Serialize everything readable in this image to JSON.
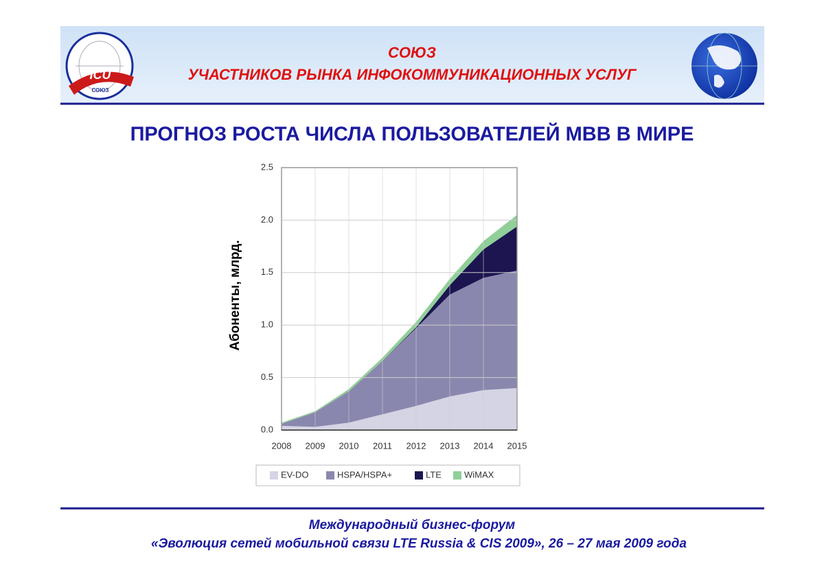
{
  "header": {
    "line1": "СОЮЗ",
    "line2": "УЧАСТНИКОВ РЫНКА ИНФОКОММУНИКАЦИОННЫХ УСЛУГ",
    "logo_text": "ICU",
    "logo_subtext": "СОЮЗ"
  },
  "slide_title": "ПРОГНОЗ РОСТА ЧИСЛА ПОЛЬЗОВАТЕЛЕЙ MBB В МИРЕ",
  "chart_data": {
    "type": "stacked_area",
    "y_label": "Абоненты, млрд.",
    "x": [
      2008,
      2009,
      2010,
      2011,
      2012,
      2013,
      2014,
      2015
    ],
    "xlim": [
      2008,
      2015
    ],
    "xticks": [
      2008,
      2009,
      2010,
      2011,
      2012,
      2013,
      2014,
      2015
    ],
    "ylim": [
      0,
      2.5
    ],
    "yticks": [
      {
        "value": 0,
        "label": "0.0"
      },
      0.5,
      {
        "value": 1,
        "label": "1.0"
      },
      1.5,
      {
        "value": 2,
        "label": "2.0"
      },
      2.5
    ],
    "grid": true,
    "legend": "bottom",
    "series": [
      {
        "name": "EV-DO",
        "color": "#d4d4e4",
        "values": [
          0.04,
          0.03,
          0.07,
          0.15,
          0.23,
          0.32,
          0.38,
          0.4
        ]
      },
      {
        "name": "HSPA/HSPA+",
        "color": "#8a87ae",
        "values": [
          0.02,
          0.14,
          0.3,
          0.51,
          0.74,
          0.97,
          1.07,
          1.12
        ]
      },
      {
        "name": "LTE",
        "color": "#1c1550",
        "values": [
          0,
          0,
          0,
          0,
          0.01,
          0.09,
          0.27,
          0.42
        ]
      },
      {
        "name": "WiMAX",
        "color": "#90cf98",
        "values": [
          0.01,
          0.01,
          0.02,
          0.03,
          0.05,
          0.06,
          0.08,
          0.11
        ]
      }
    ]
  },
  "footer": {
    "line1": "Международный бизнес-форум",
    "line2": "«Эволюция сетей мобильной связи LTE Russia & CIS 2009», 26 – 27 мая 2009 года"
  }
}
